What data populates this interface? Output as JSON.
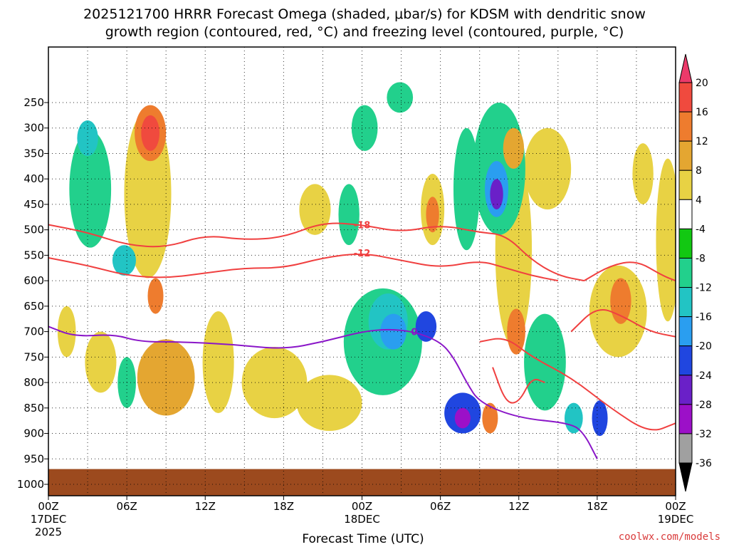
{
  "chart_data": {
    "type": "heatmap",
    "title_line1": "2025121700 HRRR Forecast Omega (shaded, μbar/s) for KDSM with dendritic snow",
    "title_line2": "growth region (contoured, red, °C) and freezing level (contoured, purple, °C)",
    "xlabel": "Forecast Time (UTC)",
    "ylabel": "",
    "credit": "coolwx.com/models",
    "x_ticks": [
      {
        "hour": 0,
        "label": "00Z",
        "sub": "17DEC",
        "sub2": "2025"
      },
      {
        "hour": 6,
        "label": "06Z"
      },
      {
        "hour": 12,
        "label": "12Z"
      },
      {
        "hour": 18,
        "label": "18Z"
      },
      {
        "hour": 24,
        "label": "00Z",
        "sub": "18DEC"
      },
      {
        "hour": 30,
        "label": "06Z"
      },
      {
        "hour": 36,
        "label": "12Z"
      },
      {
        "hour": 42,
        "label": "18Z"
      },
      {
        "hour": 48,
        "label": "00Z",
        "sub": "19DEC"
      }
    ],
    "y_ticks": [
      {
        "p": 250,
        "label": "250"
      },
      {
        "p": 300,
        "label": "300"
      },
      {
        "p": 350,
        "label": "350"
      },
      {
        "p": 400,
        "label": "400"
      },
      {
        "p": 450,
        "label": "450"
      },
      {
        "p": 500,
        "label": "500"
      },
      {
        "p": 550,
        "label": "550"
      },
      {
        "p": 600,
        "label": "600"
      },
      {
        "p": 650,
        "label": "650"
      },
      {
        "p": 700,
        "label": "700"
      },
      {
        "p": 750,
        "label": "750"
      },
      {
        "p": 800,
        "label": "800"
      },
      {
        "p": 850,
        "label": "850"
      },
      {
        "p": 900,
        "label": "900"
      },
      {
        "p": 950,
        "label": "950"
      },
      {
        "p": 1000,
        "label": "1000"
      }
    ],
    "colorbar": {
      "labels": [
        "20",
        "16",
        "12",
        "8",
        "4",
        "-4",
        "-8",
        "-12",
        "-16",
        "-20",
        "-24",
        "-28",
        "-32",
        "-36"
      ],
      "colors": [
        "#ec3a6a",
        "#f04a3e",
        "#ee7c2e",
        "#e4a631",
        "#e8d244",
        "#ffffff",
        "#12c812",
        "#22d08c",
        "#22c4c4",
        "#2a9ef0",
        "#2046e0",
        "#6a20c8",
        "#9c10c8",
        "#a0a0a0"
      ]
    },
    "omega_blobs": [
      {
        "x": 3.2,
        "p": 420,
        "rx": 1.6,
        "ry": 230,
        "v": -10
      },
      {
        "x": 3.0,
        "p": 320,
        "rx": 0.8,
        "ry": 70,
        "v": -14
      },
      {
        "x": 1.4,
        "p": 700,
        "rx": 0.7,
        "ry": 100,
        "v": 6
      },
      {
        "x": 5.8,
        "p": 560,
        "rx": 0.9,
        "ry": 60,
        "v": -12
      },
      {
        "x": 6.0,
        "p": 800,
        "rx": 0.7,
        "ry": 100,
        "v": -10
      },
      {
        "x": 7.6,
        "p": 430,
        "rx": 1.8,
        "ry": 330,
        "v": 6
      },
      {
        "x": 7.8,
        "p": 310,
        "rx": 1.2,
        "ry": 110,
        "v": 12
      },
      {
        "x": 7.8,
        "p": 310,
        "rx": 0.7,
        "ry": 70,
        "v": 16
      },
      {
        "x": 8.2,
        "p": 630,
        "rx": 0.6,
        "ry": 70,
        "v": 12
      },
      {
        "x": 9.0,
        "p": 790,
        "rx": 2.2,
        "ry": 150,
        "v": 8
      },
      {
        "x": 4.0,
        "p": 760,
        "rx": 1.2,
        "ry": 120,
        "v": 6
      },
      {
        "x": 17.3,
        "p": 800,
        "rx": 2.5,
        "ry": 140,
        "v": 6
      },
      {
        "x": 20.4,
        "p": 460,
        "rx": 1.2,
        "ry": 100,
        "v": 6
      },
      {
        "x": 21.5,
        "p": 840,
        "rx": 2.5,
        "ry": 110,
        "v": 6
      },
      {
        "x": 25.6,
        "p": 720,
        "rx": 3.0,
        "ry": 210,
        "v": -10
      },
      {
        "x": 26.0,
        "p": 680,
        "rx": 1.5,
        "ry": 110,
        "v": -14
      },
      {
        "x": 26.4,
        "p": 700,
        "rx": 1.0,
        "ry": 70,
        "v": -18
      },
      {
        "x": 28.9,
        "p": 690,
        "rx": 0.8,
        "ry": 60,
        "v": -22
      },
      {
        "x": 23.0,
        "p": 470,
        "rx": 0.8,
        "ry": 120,
        "v": -10
      },
      {
        "x": 31.7,
        "p": 860,
        "rx": 1.4,
        "ry": 80,
        "v": -20
      },
      {
        "x": 31.7,
        "p": 870,
        "rx": 0.6,
        "ry": 40,
        "v": -28
      },
      {
        "x": 34.5,
        "p": 380,
        "rx": 2.0,
        "ry": 260,
        "v": -10
      },
      {
        "x": 34.3,
        "p": 420,
        "rx": 0.9,
        "ry": 110,
        "v": -18
      },
      {
        "x": 34.3,
        "p": 430,
        "rx": 0.5,
        "ry": 60,
        "v": -26
      },
      {
        "x": 32.0,
        "p": 420,
        "rx": 1.0,
        "ry": 240,
        "v": -10
      },
      {
        "x": 29.4,
        "p": 460,
        "rx": 0.9,
        "ry": 140,
        "v": 6
      },
      {
        "x": 29.4,
        "p": 470,
        "rx": 0.5,
        "ry": 70,
        "v": 12
      },
      {
        "x": 35.6,
        "p": 540,
        "rx": 1.4,
        "ry": 380,
        "v": 6
      },
      {
        "x": 35.8,
        "p": 700,
        "rx": 0.7,
        "ry": 90,
        "v": 14
      },
      {
        "x": 35.6,
        "p": 340,
        "rx": 0.8,
        "ry": 80,
        "v": 10
      },
      {
        "x": 33.8,
        "p": 870,
        "rx": 0.6,
        "ry": 60,
        "v": 14
      },
      {
        "x": 38.0,
        "p": 760,
        "rx": 1.6,
        "ry": 190,
        "v": -10
      },
      {
        "x": 40.2,
        "p": 870,
        "rx": 0.7,
        "ry": 60,
        "v": -12
      },
      {
        "x": 42.2,
        "p": 870,
        "rx": 0.6,
        "ry": 70,
        "v": -20
      },
      {
        "x": 38.2,
        "p": 380,
        "rx": 1.8,
        "ry": 160,
        "v": 6
      },
      {
        "x": 43.6,
        "p": 660,
        "rx": 2.2,
        "ry": 180,
        "v": 6
      },
      {
        "x": 43.8,
        "p": 640,
        "rx": 0.8,
        "ry": 90,
        "v": 12
      },
      {
        "x": 47.4,
        "p": 520,
        "rx": 0.9,
        "ry": 320,
        "v": 6
      },
      {
        "x": 45.5,
        "p": 390,
        "rx": 0.8,
        "ry": 120,
        "v": 6
      },
      {
        "x": 13.0,
        "p": 760,
        "rx": 1.2,
        "ry": 200,
        "v": 6
      },
      {
        "x": 24.2,
        "p": 300,
        "rx": 1.0,
        "ry": 90,
        "v": -10
      },
      {
        "x": 26.9,
        "p": 240,
        "rx": 1.0,
        "ry": 60,
        "v": -10
      }
    ],
    "dendritic_contours": [
      {
        "label": "-18",
        "points": [
          [
            0,
            490
          ],
          [
            3,
            505
          ],
          [
            6,
            530
          ],
          [
            9,
            535
          ],
          [
            12,
            510
          ],
          [
            15,
            520
          ],
          [
            18,
            515
          ],
          [
            21,
            485
          ],
          [
            24,
            490
          ],
          [
            27,
            505
          ],
          [
            30,
            490
          ],
          [
            33,
            505
          ],
          [
            35,
            510
          ],
          [
            37,
            560
          ],
          [
            39,
            590
          ],
          [
            41,
            600
          ]
        ]
      },
      {
        "label": "-12",
        "points": [
          [
            0,
            555
          ],
          [
            3,
            570
          ],
          [
            6,
            590
          ],
          [
            9,
            595
          ],
          [
            12,
            585
          ],
          [
            15,
            575
          ],
          [
            18,
            575
          ],
          [
            21,
            555
          ],
          [
            24,
            545
          ],
          [
            27,
            560
          ],
          [
            30,
            575
          ],
          [
            33,
            560
          ],
          [
            35,
            575
          ],
          [
            37,
            590
          ],
          [
            39,
            600
          ]
        ]
      },
      {
        "label": "",
        "points": [
          [
            41,
            600
          ],
          [
            43,
            570
          ],
          [
            45,
            560
          ],
          [
            47,
            590
          ],
          [
            48,
            600
          ]
        ]
      },
      {
        "label": "",
        "points": [
          [
            40,
            700
          ],
          [
            42,
            650
          ],
          [
            44,
            670
          ],
          [
            46,
            700
          ],
          [
            48,
            710
          ]
        ]
      },
      {
        "label": "",
        "points": [
          [
            34,
            770
          ],
          [
            35,
            840
          ],
          [
            36,
            840
          ],
          [
            37,
            790
          ],
          [
            38,
            800
          ]
        ]
      },
      {
        "label": "",
        "points": [
          [
            33,
            720
          ],
          [
            35,
            710
          ],
          [
            37,
            750
          ],
          [
            40,
            790
          ],
          [
            43,
            850
          ],
          [
            46,
            900
          ],
          [
            48,
            880
          ]
        ]
      }
    ],
    "freezing_contours": [
      {
        "label": "0",
        "points": [
          [
            0,
            690
          ],
          [
            2,
            710
          ],
          [
            5,
            705
          ],
          [
            7,
            720
          ],
          [
            10,
            720
          ],
          [
            14,
            725
          ],
          [
            18,
            735
          ],
          [
            21,
            720
          ],
          [
            24,
            700
          ],
          [
            26,
            695
          ],
          [
            28,
            700
          ],
          [
            30,
            720
          ],
          [
            31,
            750
          ],
          [
            32,
            800
          ],
          [
            33,
            840
          ],
          [
            36,
            870
          ],
          [
            40,
            880
          ],
          [
            41,
            900
          ],
          [
            42,
            950
          ]
        ]
      }
    ],
    "ground": {
      "p_top": 970,
      "color": "#9c4a1e"
    }
  }
}
